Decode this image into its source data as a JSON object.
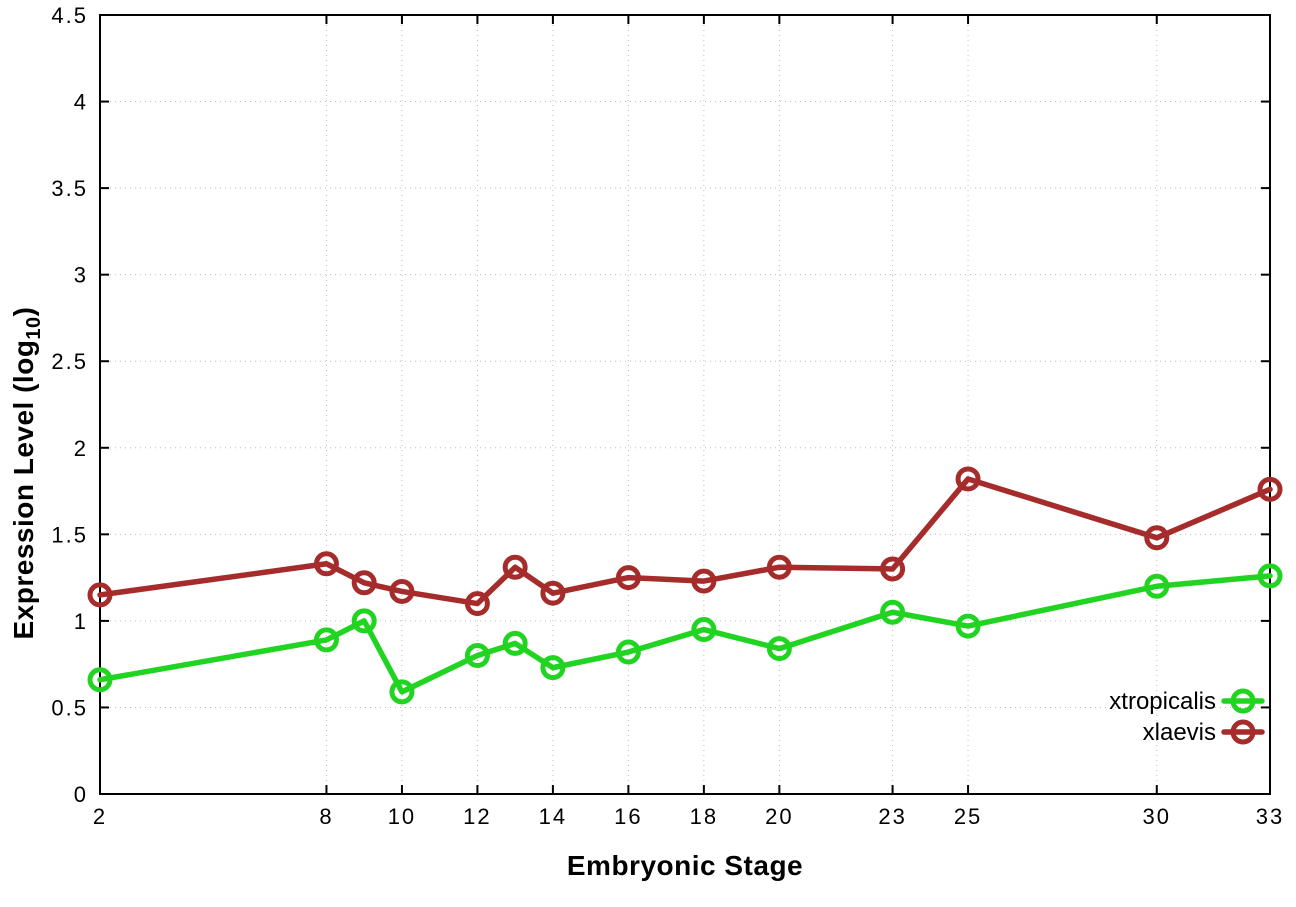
{
  "figure": {
    "xlabel": "Embryonic Stage",
    "ylabel_main": "Expression Level (log",
    "ylabel_sub": "10",
    "ylabel_close": ")"
  },
  "chart_data": {
    "type": "line",
    "title": "",
    "xlabel": "Embryonic Stage",
    "ylabel": "Expression Level (log10)",
    "xlim": [
      2,
      33
    ],
    "ylim": [
      0,
      4.5
    ],
    "x_ticks": [
      2,
      8,
      10,
      12,
      14,
      16,
      18,
      20,
      23,
      25,
      30,
      33
    ],
    "y_ticks": [
      0,
      0.5,
      1,
      1.5,
      2,
      2.5,
      3,
      3.5,
      4,
      4.5
    ],
    "grid": true,
    "legend_position": "bottom-right-inside",
    "x": [
      2,
      8,
      9,
      10,
      12,
      13,
      14,
      16,
      18,
      20,
      23,
      25,
      30,
      33
    ],
    "series": [
      {
        "name": "xtropicalis",
        "color": "#22d422",
        "marker": "open-circle",
        "values": [
          0.66,
          0.89,
          1.0,
          0.59,
          0.8,
          0.87,
          0.73,
          0.82,
          0.95,
          0.84,
          1.05,
          0.97,
          1.2,
          1.26
        ]
      },
      {
        "name": "xlaevis",
        "color": "#a62c2c",
        "marker": "open-circle",
        "values": [
          1.15,
          1.33,
          1.22,
          1.17,
          1.1,
          1.31,
          1.16,
          1.25,
          1.23,
          1.31,
          1.3,
          1.82,
          1.48,
          1.76
        ]
      }
    ],
    "style": {
      "grid_color": "#bdbdbd",
      "border_color": "#000000",
      "tick_label_color": "#000000",
      "legend_text_color": "#000000"
    }
  }
}
